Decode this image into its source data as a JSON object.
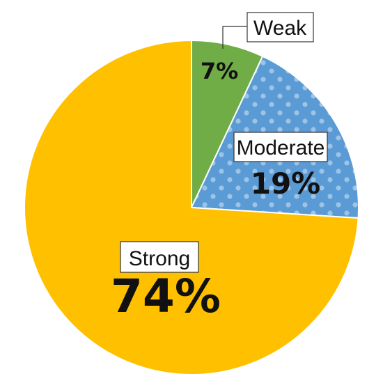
{
  "chart_data": {
    "type": "pie",
    "start_angle_deg": 0,
    "direction": "clockwise",
    "slices": [
      {
        "label": "Weak",
        "value": 7,
        "display": "7%",
        "color": "#70AD47"
      },
      {
        "label": "Moderate",
        "value": 19,
        "display": "19%",
        "color": "#5B9BD5",
        "pattern": "dots",
        "pattern_color": "#9DC3E6"
      },
      {
        "label": "Strong",
        "value": 74,
        "display": "74%",
        "color": "#FFC000"
      }
    ]
  }
}
